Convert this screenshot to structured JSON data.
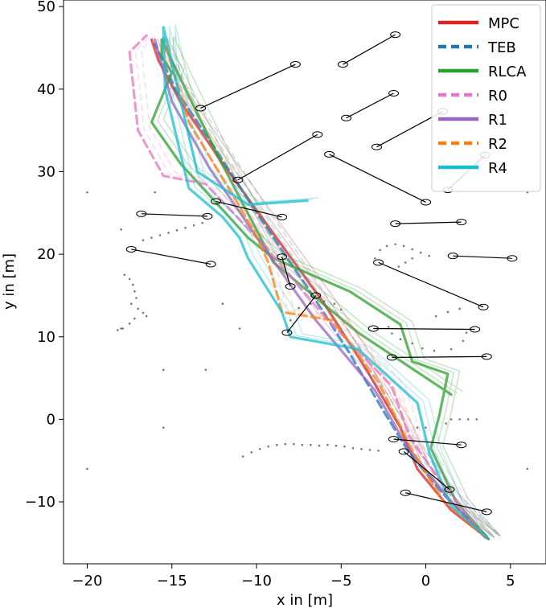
{
  "chart_data": {
    "type": "line",
    "title": "",
    "xlabel": "x in [m]",
    "ylabel": "y in [m]",
    "xlim": [
      -21.4,
      7.1
    ],
    "ylim": [
      -17.5,
      50.8
    ],
    "xticks": [
      -20,
      -15,
      -10,
      -5,
      0,
      5
    ],
    "yticks": [
      -10,
      0,
      10,
      20,
      30,
      40,
      50
    ],
    "xtick_labels": [
      "−20",
      "−15",
      "−10",
      "−5",
      "0",
      "5"
    ],
    "ytick_labels": [
      "−10",
      "0",
      "10",
      "20",
      "30",
      "40",
      "50"
    ],
    "grid": false,
    "legend_position": "top-right",
    "series": [
      {
        "name": "MPC",
        "color": "#d62728",
        "dash": "solid",
        "x": [
          3.7,
          1.5,
          -0.5,
          -1.5,
          -3.5,
          -6.0,
          -9.0,
          -12.0,
          -14.5,
          -15.8,
          -16.2
        ],
        "y": [
          -14.5,
          -11.0,
          -6.0,
          -1.0,
          6.0,
          14.0,
          22.5,
          31.0,
          38.5,
          43.5,
          46.0
        ]
      },
      {
        "name": "TEB",
        "color": "#1f77b4",
        "dash": "dashed",
        "x": [
          3.6,
          1.0,
          -1.0,
          -2.5,
          -4.5,
          -7.0,
          -10.0,
          -12.5,
          -14.8,
          -16.0
        ],
        "y": [
          -14.2,
          -9.0,
          -4.0,
          1.0,
          8.0,
          16.0,
          25.0,
          33.0,
          40.0,
          45.5
        ]
      },
      {
        "name": "RLCA",
        "color": "#2ca02c",
        "dash": "solid",
        "x": [
          3.7,
          1.8,
          0.3,
          0.8,
          1.3,
          -0.8,
          -1.5,
          -4.5,
          -9.0,
          -10.5,
          -12.5,
          -14.5,
          -16.2,
          -15.0,
          -15.6,
          -15.6,
          -14.2,
          -12.3,
          -9.0,
          -4.0,
          1.5
        ],
        "y": [
          -14.5,
          -10.0,
          -3.5,
          0.5,
          5.5,
          7.0,
          11.5,
          15.5,
          19.5,
          22.0,
          26.5,
          31.0,
          36.0,
          42.0,
          44.0,
          46.0,
          40.0,
          32.0,
          19.0,
          10.5,
          3.0
        ]
      },
      {
        "name": "R0",
        "color": "#e377c2",
        "dash": "dashed",
        "x": [
          3.4,
          1.2,
          -1.0,
          -2.0,
          -6.0,
          -9.5,
          -13.0,
          -15.5,
          -17.0,
          -17.5,
          -16.5
        ],
        "y": [
          -14.0,
          -8.5,
          -2.0,
          4.0,
          12.5,
          21.0,
          28.5,
          29.5,
          35.0,
          44.5,
          46.5
        ]
      },
      {
        "name": "R1",
        "color": "#9467bd",
        "dash": "solid",
        "x": [
          3.5,
          1.3,
          -1.2,
          -3.0,
          -6.5,
          -9.8,
          -12.8,
          -15.0,
          -16.0
        ],
        "y": [
          -14.3,
          -9.5,
          -3.0,
          3.5,
          12.0,
          21.5,
          30.5,
          38.5,
          46.0
        ]
      },
      {
        "name": "R2",
        "color": "#ff7f0e",
        "dash": "dashed",
        "x": [
          3.6,
          1.0,
          -0.8,
          -2.8,
          -5.5,
          -8.5,
          -9.3,
          -10.2,
          -11.8,
          -14.0,
          -15.5
        ],
        "y": [
          -14.4,
          -9.8,
          -3.8,
          4.5,
          12.0,
          13.0,
          19.0,
          23.0,
          28.5,
          36.0,
          46.2
        ]
      },
      {
        "name": "R4",
        "color": "#17becf",
        "dash": "solid",
        "x": [
          3.7,
          1.5,
          0.2,
          -0.5,
          -4.0,
          -8.0,
          -8.5,
          -10.5,
          -11.0,
          -12.0,
          -14.0,
          -15.4,
          -15.5,
          -13.5,
          -10.5,
          -7.0
        ],
        "y": [
          -14.5,
          -10.5,
          -4.0,
          2.0,
          8.5,
          10.0,
          13.0,
          19.5,
          22.0,
          24.5,
          28.0,
          40.0,
          47.5,
          30.0,
          26.0,
          26.5
        ]
      }
    ],
    "obstacle_segments": [
      {
        "x": [
          -4.9,
          -1.8
        ],
        "y": [
          43.0,
          46.6
        ]
      },
      {
        "x": [
          -13.3,
          -7.7
        ],
        "y": [
          37.7,
          43.0
        ]
      },
      {
        "x": [
          -4.7,
          -1.9
        ],
        "y": [
          36.5,
          39.5
        ]
      },
      {
        "x": [
          -2.9,
          1.0
        ],
        "y": [
          33.0,
          37.3
        ]
      },
      {
        "x": [
          -11.1,
          -6.4
        ],
        "y": [
          29.0,
          34.5
        ]
      },
      {
        "x": [
          -5.7,
          0.0
        ],
        "y": [
          32.1,
          26.3
        ]
      },
      {
        "x": [
          1.3,
          3.5
        ],
        "y": [
          27.8,
          32.0
        ]
      },
      {
        "x": [
          -12.4,
          -8.5
        ],
        "y": [
          26.4,
          24.5
        ]
      },
      {
        "x": [
          -16.8,
          -12.9
        ],
        "y": [
          24.9,
          24.6
        ]
      },
      {
        "x": [
          -1.8,
          2.1
        ],
        "y": [
          23.7,
          23.9
        ]
      },
      {
        "x": [
          -17.4,
          -12.7
        ],
        "y": [
          20.6,
          18.8
        ]
      },
      {
        "x": [
          1.6,
          5.1
        ],
        "y": [
          19.8,
          19.5
        ]
      },
      {
        "x": [
          -8.5,
          -8.0
        ],
        "y": [
          19.7,
          16.1
        ]
      },
      {
        "x": [
          -2.8,
          3.4
        ],
        "y": [
          19.0,
          13.6
        ]
      },
      {
        "x": [
          -6.5,
          -8.2
        ],
        "y": [
          15.0,
          10.5
        ]
      },
      {
        "x": [
          -3.1,
          2.9
        ],
        "y": [
          11.0,
          10.9
        ]
      },
      {
        "x": [
          -2.0,
          3.6
        ],
        "y": [
          7.5,
          7.6
        ]
      },
      {
        "x": [
          -1.9,
          2.1
        ],
        "y": [
          -2.4,
          -3.1
        ]
      },
      {
        "x": [
          -1.3,
          1.4
        ],
        "y": [
          -3.9,
          -8.5
        ]
      },
      {
        "x": [
          -1.2,
          3.6
        ],
        "y": [
          -8.9,
          -11.2
        ]
      }
    ],
    "scan_points": [
      [
        -20.0,
        27.5
      ],
      [
        -18.0,
        23.0
      ],
      [
        -18.0,
        11.0
      ],
      [
        -16.0,
        27.5
      ],
      [
        -15.5,
        6.0
      ],
      [
        -13.0,
        6.0
      ],
      [
        -15.5,
        -1.0
      ],
      [
        -20.0,
        -6.0
      ],
      [
        6.0,
        27.5
      ],
      [
        6.0,
        -6.0
      ],
      [
        -12.0,
        14.0
      ],
      [
        -11.0,
        11.0
      ],
      [
        -13.2,
        23.8
      ],
      [
        -13.7,
        23.5
      ],
      [
        -14.2,
        23.2
      ],
      [
        -14.7,
        22.9
      ],
      [
        -15.2,
        22.6
      ],
      [
        -15.7,
        22.3
      ],
      [
        -16.2,
        22.0
      ],
      [
        -16.7,
        21.7
      ],
      [
        -17.8,
        17.5
      ],
      [
        -17.5,
        17.0
      ],
      [
        -17.3,
        16.3
      ],
      [
        -17.2,
        15.5
      ],
      [
        -17.1,
        14.7
      ],
      [
        -17.4,
        14.0
      ],
      [
        -17.0,
        13.4
      ],
      [
        -16.7,
        12.9
      ],
      [
        -17.2,
        12.2
      ],
      [
        -17.5,
        11.6
      ],
      [
        -16.5,
        12.5
      ],
      [
        -17.9,
        11.0
      ],
      [
        -18.2,
        10.8
      ],
      [
        -10.8,
        -4.5
      ],
      [
        -10.3,
        -4.0
      ],
      [
        -9.8,
        -3.6
      ],
      [
        -9.3,
        -3.3
      ],
      [
        -8.8,
        -3.1
      ],
      [
        -8.3,
        -3.0
      ],
      [
        -7.8,
        -3.0
      ],
      [
        -7.3,
        -3.1
      ],
      [
        -6.8,
        -3.1
      ],
      [
        -6.3,
        -3.2
      ],
      [
        -5.8,
        -3.1
      ],
      [
        -5.3,
        -3.2
      ],
      [
        -4.8,
        -3.3
      ],
      [
        -4.3,
        -3.5
      ],
      [
        -3.8,
        -3.6
      ],
      [
        -3.3,
        -3.7
      ],
      [
        -2.8,
        -3.8
      ],
      [
        -3.0,
        19.5
      ],
      [
        -2.7,
        20.5
      ],
      [
        -2.3,
        21.0
      ],
      [
        -1.8,
        21.2
      ],
      [
        -1.3,
        21.0
      ],
      [
        -0.8,
        20.6
      ],
      [
        -0.3,
        20.2
      ],
      [
        0.2,
        19.8
      ],
      [
        -1.2,
        19.0
      ],
      [
        -0.8,
        19.5
      ],
      [
        -1.6,
        18.5
      ],
      [
        -2.2,
        11.2
      ],
      [
        -2.0,
        10.4
      ],
      [
        -1.5,
        9.7
      ],
      [
        -0.8,
        9.2
      ],
      [
        -0.2,
        8.6
      ],
      [
        0.5,
        8.3
      ],
      [
        1.5,
        8.5
      ],
      [
        2.2,
        9.5
      ],
      [
        2.4,
        10.5
      ],
      [
        0.6,
        12.5
      ],
      [
        1.3,
        13.0
      ],
      [
        2.0,
        13.4
      ],
      [
        -8.0,
        12.0
      ],
      [
        -7.5,
        13.5
      ],
      [
        -6.8,
        14.0
      ],
      [
        -6.0,
        14.3
      ],
      [
        -5.4,
        14.0
      ],
      [
        -5.0,
        13.3
      ],
      [
        1.5,
        0.0
      ],
      [
        2.0,
        0.0
      ],
      [
        2.5,
        0.0
      ],
      [
        3.0,
        0.0
      ],
      [
        1.2,
        -0.5
      ],
      [
        -0.5,
        -1.0
      ],
      [
        0.0,
        -1.0
      ]
    ],
    "legend": [
      "MPC",
      "TEB",
      "RLCA",
      "R0",
      "R1",
      "R2",
      "R4"
    ]
  }
}
